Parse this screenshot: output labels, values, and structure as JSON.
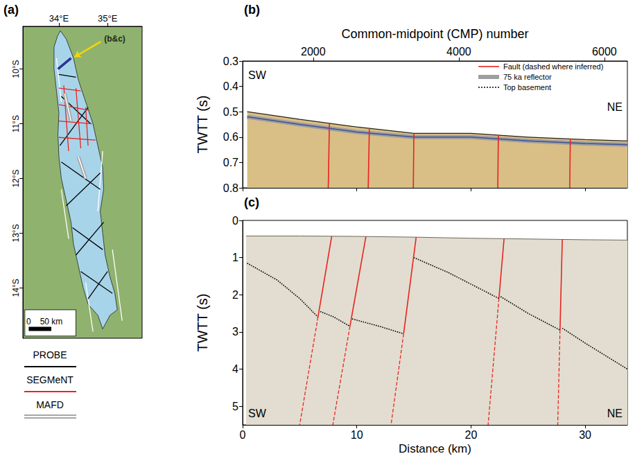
{
  "chart_data": [
    {
      "panel": "(a)",
      "type": "map",
      "xlim": [
        33.26,
        35.71
      ],
      "xticks": [
        {
          "value": 34,
          "label": "34°E"
        },
        {
          "value": 35,
          "label": "35°E"
        }
      ],
      "ylim": [
        -14.92,
        -9.22
      ],
      "yticks": [
        {
          "value": -10,
          "label": "10°S"
        },
        {
          "value": -11,
          "label": "11°S"
        },
        {
          "value": -12,
          "label": "12°S"
        },
        {
          "value": -13,
          "label": "13°S"
        },
        {
          "value": -14,
          "label": "14°S"
        }
      ],
      "lake": {
        "color": "#a8d4ea",
        "outline": [
          [
            34.03,
            -9.3
          ],
          [
            34.15,
            -9.45
          ],
          [
            34.3,
            -9.8
          ],
          [
            34.4,
            -10.2
          ],
          [
            34.55,
            -10.6
          ],
          [
            34.7,
            -11.0
          ],
          [
            34.8,
            -11.4
          ],
          [
            34.9,
            -11.8
          ],
          [
            34.92,
            -12.2
          ],
          [
            34.85,
            -12.6
          ],
          [
            34.9,
            -13.0
          ],
          [
            34.95,
            -13.4
          ],
          [
            35.05,
            -13.8
          ],
          [
            35.15,
            -14.1
          ],
          [
            35.2,
            -14.4
          ],
          [
            35.05,
            -14.5
          ],
          [
            34.9,
            -14.75
          ],
          [
            34.8,
            -14.5
          ],
          [
            34.6,
            -14.3
          ],
          [
            34.5,
            -14.0
          ],
          [
            34.4,
            -13.6
          ],
          [
            34.3,
            -13.2
          ],
          [
            34.25,
            -12.8
          ],
          [
            34.15,
            -12.4
          ],
          [
            34.05,
            -12.0
          ],
          [
            34.0,
            -11.6
          ],
          [
            33.98,
            -11.2
          ],
          [
            34.0,
            -10.8
          ],
          [
            33.95,
            -10.4
          ],
          [
            33.9,
            -10.0
          ],
          [
            33.9,
            -9.6
          ],
          [
            33.97,
            -9.4
          ]
        ]
      },
      "series": [
        {
          "color": "#ffffff",
          "line_style": "solid",
          "segments": [
            [
              [
                33.95,
                -9.8
              ],
              [
                34.05,
                -10.6
              ]
            ],
            [
              [
                34.9,
                -11.5
              ],
              [
                34.8,
                -12.6
              ]
            ],
            [
              [
                34.05,
                -12.2
              ],
              [
                34.2,
                -13.1
              ]
            ],
            [
              [
                35.1,
                -13.3
              ],
              [
                35.3,
                -14.6
              ]
            ],
            [
              [
                34.55,
                -13.9
              ],
              [
                34.7,
                -14.8
              ]
            ]
          ]
        },
        {
          "name": "PROBE",
          "color": "#000000",
          "line_style": "solid",
          "segments": [
            [
              [
                34.05,
                -10.5
              ],
              [
                34.65,
                -11.0
              ]
            ],
            [
              [
                34.6,
                -10.7
              ],
              [
                34.02,
                -11.4
              ]
            ],
            [
              [
                34.05,
                -11.7
              ],
              [
                34.85,
                -12.2
              ]
            ],
            [
              [
                34.85,
                -11.9
              ],
              [
                34.15,
                -12.5
              ]
            ],
            [
              [
                34.28,
                -12.9
              ],
              [
                34.9,
                -13.3
              ]
            ],
            [
              [
                34.92,
                -12.8
              ],
              [
                34.35,
                -13.4
              ]
            ],
            [
              [
                34.45,
                -13.7
              ],
              [
                35.1,
                -14.1
              ]
            ],
            [
              [
                35.0,
                -13.7
              ],
              [
                34.6,
                -14.2
              ]
            ],
            [
              [
                34.0,
                -10.1
              ],
              [
                34.35,
                -10.15
              ]
            ]
          ]
        },
        {
          "name": "SEGMeNT",
          "color": "#e8231f",
          "line_style": "solid",
          "segments": [
            [
              [
                34.0,
                -10.35
              ],
              [
                34.45,
                -10.4
              ]
            ],
            [
              [
                34.0,
                -10.65
              ],
              [
                34.6,
                -10.75
              ]
            ],
            [
              [
                34.0,
                -10.95
              ],
              [
                34.68,
                -11.0
              ]
            ],
            [
              [
                34.0,
                -11.25
              ],
              [
                34.75,
                -11.3
              ]
            ],
            [
              [
                34.1,
                -10.3
              ],
              [
                34.2,
                -11.5
              ]
            ],
            [
              [
                34.35,
                -10.35
              ],
              [
                34.45,
                -11.45
              ]
            ],
            [
              [
                34.55,
                -10.7
              ],
              [
                34.6,
                -11.4
              ]
            ]
          ]
        },
        {
          "name": "MAFD",
          "color": "#a6a6a6",
          "line_style": "double",
          "segments": [
            [
              [
                34.12,
                -10.45
              ],
              [
                34.25,
                -10.95
              ]
            ],
            [
              [
                34.4,
                -11.6
              ],
              [
                34.55,
                -12.0
              ]
            ]
          ]
        }
      ],
      "profile": {
        "label": "(b&c)",
        "color": "#2e3192",
        "line": [
          [
            33.98,
            -10.0
          ],
          [
            34.25,
            -9.8
          ]
        ],
        "label_at": [
          34.9,
          -9.45
        ]
      },
      "scale_bar": {
        "start": 0,
        "end": 50,
        "unit": "km"
      },
      "legend": "below"
    },
    {
      "panel": "(b)",
      "type": "line",
      "x_label": "Common-midpoint (CMP) number",
      "xlim": [
        1030,
        6315
      ],
      "xticks": [
        2000,
        4000,
        6000
      ],
      "x2lim": [
        0,
        33.7
      ],
      "x2ticks": [
        0,
        10,
        20,
        30
      ],
      "y_label": "TWTT (s)",
      "ylim": [
        0.3,
        0.8
      ],
      "yticks": [
        0.3,
        0.4,
        0.5,
        0.6,
        0.7,
        0.8
      ],
      "corner_labels": [
        "SW",
        "NE"
      ],
      "legend": "upper right",
      "legend_entries": [
        {
          "name": "Fault (dashed where inferred)",
          "color": "#e8231f",
          "line_style": "solid"
        },
        {
          "name": "75 ka reflector",
          "color": "#9e9e9e",
          "line_style": "solid"
        },
        {
          "name": "Top basement",
          "color": "#000000",
          "line_style": "dotted"
        }
      ],
      "seafloor": {
        "color": "#d9bf85",
        "points": [
          [
            0.4,
            0.5
          ],
          [
            5,
            0.53
          ],
          [
            10,
            0.56
          ],
          [
            15,
            0.585
          ],
          [
            20,
            0.585
          ],
          [
            25,
            0.6
          ],
          [
            30,
            0.61
          ],
          [
            33.7,
            0.615
          ]
        ]
      },
      "reflector_75ka": {
        "color": "#9e9e9e",
        "points": [
          [
            0.4,
            0.52
          ],
          [
            5,
            0.55
          ],
          [
            10,
            0.58
          ],
          [
            15,
            0.6
          ],
          [
            20,
            0.6
          ],
          [
            25,
            0.615
          ],
          [
            30,
            0.625
          ],
          [
            33.7,
            0.63
          ]
        ]
      },
      "faults": {
        "color": "#e8231f",
        "segments": [
          [
            [
              7.6,
              0.546
            ],
            [
              7.5,
              0.8
            ]
          ],
          [
            [
              11.1,
              0.565
            ],
            [
              11.0,
              0.8
            ]
          ],
          [
            [
              15.0,
              0.585
            ],
            [
              14.95,
              0.8
            ]
          ],
          [
            [
              22.4,
              0.592
            ],
            [
              22.35,
              0.8
            ]
          ],
          [
            [
              28.7,
              0.607
            ],
            [
              28.65,
              0.8
            ]
          ]
        ]
      }
    },
    {
      "panel": "(c)",
      "type": "line",
      "x_label": "Distance (km)",
      "xlim": [
        0,
        33.7
      ],
      "xticks": [
        0,
        10,
        20,
        30
      ],
      "y_label": "TWTT (s)",
      "ylim": [
        0,
        5.5
      ],
      "yticks": [
        0,
        1,
        2,
        3,
        4,
        5
      ],
      "corner_labels": [
        "SW",
        "NE"
      ],
      "seafloor": {
        "color": "#e2ddd0",
        "points": [
          [
            0.3,
            0.42
          ],
          [
            5,
            0.42
          ],
          [
            10,
            0.43
          ],
          [
            15,
            0.45
          ],
          [
            20,
            0.48
          ],
          [
            25,
            0.5
          ],
          [
            30,
            0.52
          ],
          [
            33.7,
            0.53
          ]
        ]
      },
      "faults": {
        "color": "#e8231f",
        "segments": [
          {
            "solid": [
              [
                7.8,
                0.43
              ],
              [
                6.6,
                2.6
              ]
            ],
            "inferred": [
              [
                6.6,
                2.6
              ],
              [
                5.0,
                5.5
              ]
            ]
          },
          {
            "solid": [
              [
                10.8,
                0.43
              ],
              [
                9.4,
                2.85
              ]
            ],
            "inferred": [
              [
                9.4,
                2.85
              ],
              [
                7.9,
                5.5
              ]
            ]
          },
          {
            "solid": [
              [
                15.2,
                0.45
              ],
              [
                14.1,
                3.05
              ]
            ],
            "inferred": [
              [
                14.1,
                3.05
              ],
              [
                13.0,
                5.5
              ]
            ]
          },
          {
            "solid": [
              [
                22.9,
                0.49
              ],
              [
                22.45,
                2.1
              ]
            ],
            "inferred": [
              [
                22.45,
                2.1
              ],
              [
                21.5,
                5.5
              ]
            ]
          },
          {
            "solid": [
              [
                28.0,
                0.51
              ],
              [
                27.8,
                2.95
              ]
            ],
            "inferred": [
              [
                27.8,
                2.95
              ],
              [
                27.6,
                5.5
              ]
            ]
          }
        ]
      },
      "top_basement": {
        "color": "#000000",
        "line_style": "dotted",
        "segments": [
          [
            [
              0.4,
              1.15
            ],
            [
              3,
              1.6
            ],
            [
              5,
              2.1
            ],
            [
              6.6,
              2.6
            ]
          ],
          [
            [
              6.8,
              2.45
            ],
            [
              8,
              2.6
            ],
            [
              9.4,
              2.85
            ]
          ],
          [
            [
              9.6,
              2.65
            ],
            [
              12,
              2.85
            ],
            [
              14.1,
              3.05
            ]
          ],
          [
            [
              15.0,
              1.0
            ],
            [
              18,
              1.4
            ],
            [
              22.45,
              2.1
            ]
          ],
          [
            [
              22.6,
              2.05
            ],
            [
              25,
              2.5
            ],
            [
              27.8,
              2.95
            ]
          ],
          [
            [
              28.0,
              2.9
            ],
            [
              30,
              3.3
            ],
            [
              33.7,
              4.0
            ]
          ]
        ]
      }
    }
  ]
}
